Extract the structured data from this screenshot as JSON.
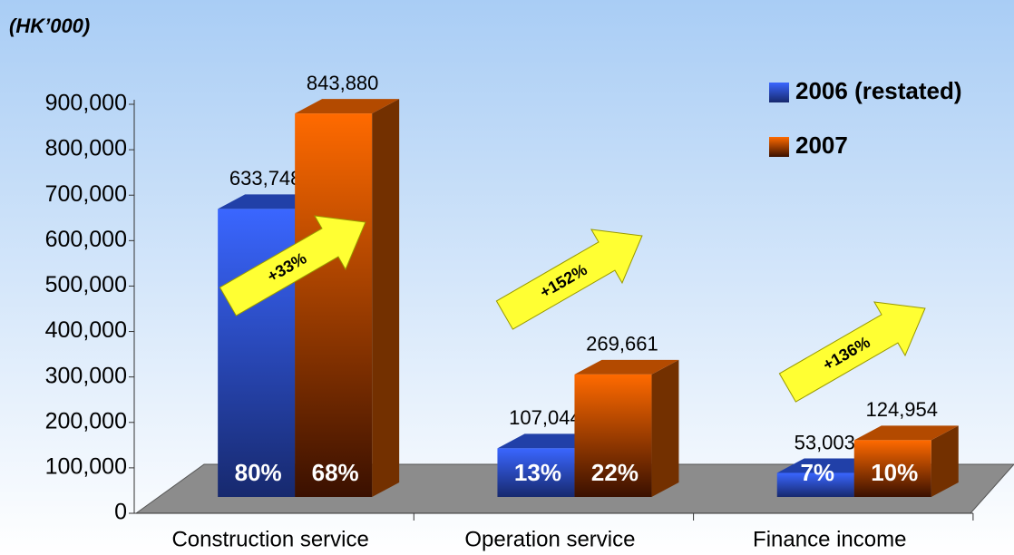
{
  "chart_data": {
    "type": "bar",
    "y_label": "(HK’000)",
    "categories": [
      "Construction service",
      "Operation service",
      "Finance income"
    ],
    "series": [
      {
        "name": "2006 (restated)",
        "color": "#2f5cf0",
        "values": [
          633748,
          107044,
          53003
        ],
        "value_labels": [
          "633,748",
          "107,044",
          "53,003"
        ],
        "shares": [
          80,
          13,
          7
        ],
        "share_labels": [
          "80%",
          "13%",
          "7%"
        ]
      },
      {
        "name": "2007",
        "color": "#ff6a00",
        "values": [
          843880,
          269661,
          124954
        ],
        "value_labels": [
          "843,880",
          "269,661",
          "124,954"
        ],
        "shares": [
          68,
          22,
          10
        ],
        "share_labels": [
          "68%",
          "22%",
          "10%"
        ]
      }
    ],
    "growth_labels": [
      "+33%",
      "+152%",
      "+136%"
    ],
    "ylim": [
      0,
      900000
    ],
    "yticks": [
      0,
      {
        "value": 100000,
        "label": "100,000"
      },
      {
        "value": 200000,
        "label": "200,000"
      },
      {
        "value": 300000,
        "label": "300,000"
      },
      {
        "value": 400000,
        "label": "400,000"
      },
      {
        "value": 500000,
        "label": "500,000"
      },
      {
        "value": 600000,
        "label": "600,000"
      },
      {
        "value": 700000,
        "label": "700,000"
      },
      {
        "value": 800000,
        "label": "800,000"
      },
      {
        "value": 900000,
        "label": "900,000"
      }
    ],
    "legend": "top-right"
  }
}
